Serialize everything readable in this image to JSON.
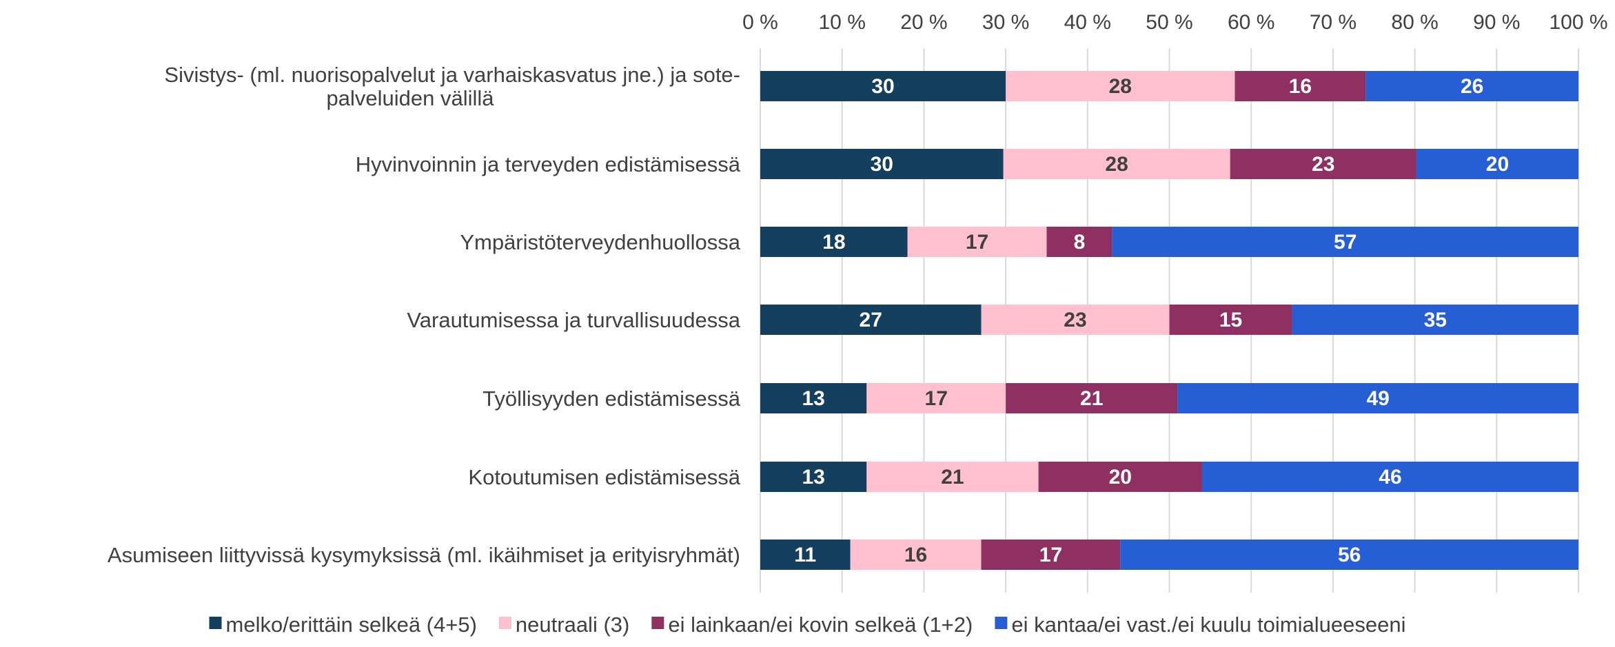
{
  "chart_data": {
    "type": "bar",
    "orientation": "horizontal",
    "stacked": true,
    "percent": true,
    "categories": [
      "Sivistys- (ml. nuorisopalvelut ja varhaiskasvatus jne.) ja sote-palveluiden välillä",
      "Hyvinvoinnin ja terveyden edistämisessä",
      "Ympäristöterveydenhuollossa",
      "Varautumisessa ja turvallisuudessa",
      "Työllisyyden edistämisessä",
      "Kotoutumisen edistämisessä",
      "Asumiseen liittyvissä kysymyksissä (ml. ikäihmiset ja erityisryhmät)"
    ],
    "category_lines": [
      [
        "Sivistys- (ml. nuorisopalvelut ja varhaiskasvatus jne.) ja sote-",
        "palveluiden välillä"
      ],
      [
        "Hyvinvoinnin ja terveyden edistämisessä"
      ],
      [
        "Ympäristöterveydenhuollossa"
      ],
      [
        "Varautumisessa ja turvallisuudessa"
      ],
      [
        "Työllisyyden edistämisessä"
      ],
      [
        "Kotoutumisen edistämisessä"
      ],
      [
        "Asumiseen liittyvissä kysymyksissä (ml. ikäihmiset ja erityisryhmät)"
      ]
    ],
    "series": [
      {
        "name": "melko/erittäin selkeä (4+5)",
        "color": "#143F5E",
        "label_color": "#ffffff",
        "values": [
          30,
          30,
          18,
          27,
          13,
          13,
          11
        ]
      },
      {
        "name": "neutraali (3)",
        "color": "#FFC1D0",
        "label_color": "#404040",
        "values": [
          28,
          28,
          17,
          23,
          17,
          21,
          16
        ]
      },
      {
        "name": "ei lainkaan/ei kovin selkeä (1+2)",
        "color": "#8F3062",
        "label_color": "#ffffff",
        "values": [
          16,
          23,
          8,
          15,
          21,
          20,
          17
        ]
      },
      {
        "name": "ei kantaa/ei vast./ei kuulu toimialueeseeni",
        "color": "#265FD5",
        "label_color": "#ffffff",
        "values": [
          26,
          20,
          57,
          35,
          49,
          46,
          56
        ]
      }
    ],
    "xlim": [
      0,
      100
    ],
    "x_ticks": [
      "0 %",
      "10 %",
      "20 %",
      "30 %",
      "40 %",
      "50 %",
      "60 %",
      "70 %",
      "80 %",
      "90 %",
      "100 %"
    ],
    "x_axis_position": "top",
    "grid": true,
    "legend_position": "bottom"
  }
}
